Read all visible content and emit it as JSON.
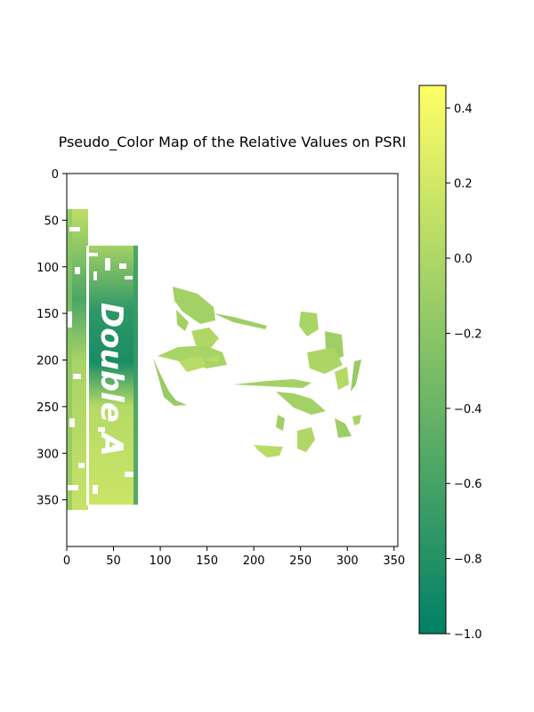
{
  "chart_data": {
    "type": "heatmap",
    "title": "Pseudo_Color Map of the Relative Values on PSRI",
    "x_ticks": [
      "0",
      "50",
      "100",
      "150",
      "200",
      "250",
      "300",
      "350"
    ],
    "y_ticks": [
      "0",
      "50",
      "100",
      "150",
      "200",
      "250",
      "300",
      "350"
    ],
    "xlim": [
      0,
      354
    ],
    "ylim": [
      400,
      0
    ],
    "colormap": "summer",
    "color_stops": [
      "#008066",
      "#ffff66"
    ],
    "colorbar": {
      "range": [
        -1.0,
        0.46
      ],
      "ticks": [
        "0.4",
        "0.2",
        "0.0",
        "−0.2",
        "−0.4",
        "−0.6",
        "−0.8",
        "−1.0"
      ],
      "tick_values": [
        0.4,
        0.2,
        0.0,
        -0.2,
        -0.4,
        -0.6,
        -0.8,
        -1.0
      ]
    },
    "image_text": "Double A",
    "regions": [
      {
        "name": "package-left-strip",
        "x": [
          0,
          22
        ],
        "y": [
          38,
          360
        ],
        "typical_value": -0.05
      },
      {
        "name": "package-front-panel",
        "x": [
          22,
          75
        ],
        "y": [
          78,
          352
        ],
        "typical_value": -0.15
      },
      {
        "name": "leaf-cluster",
        "x": [
          90,
          315
        ],
        "y": [
          120,
          310
        ],
        "typical_value": -0.05
      }
    ]
  }
}
